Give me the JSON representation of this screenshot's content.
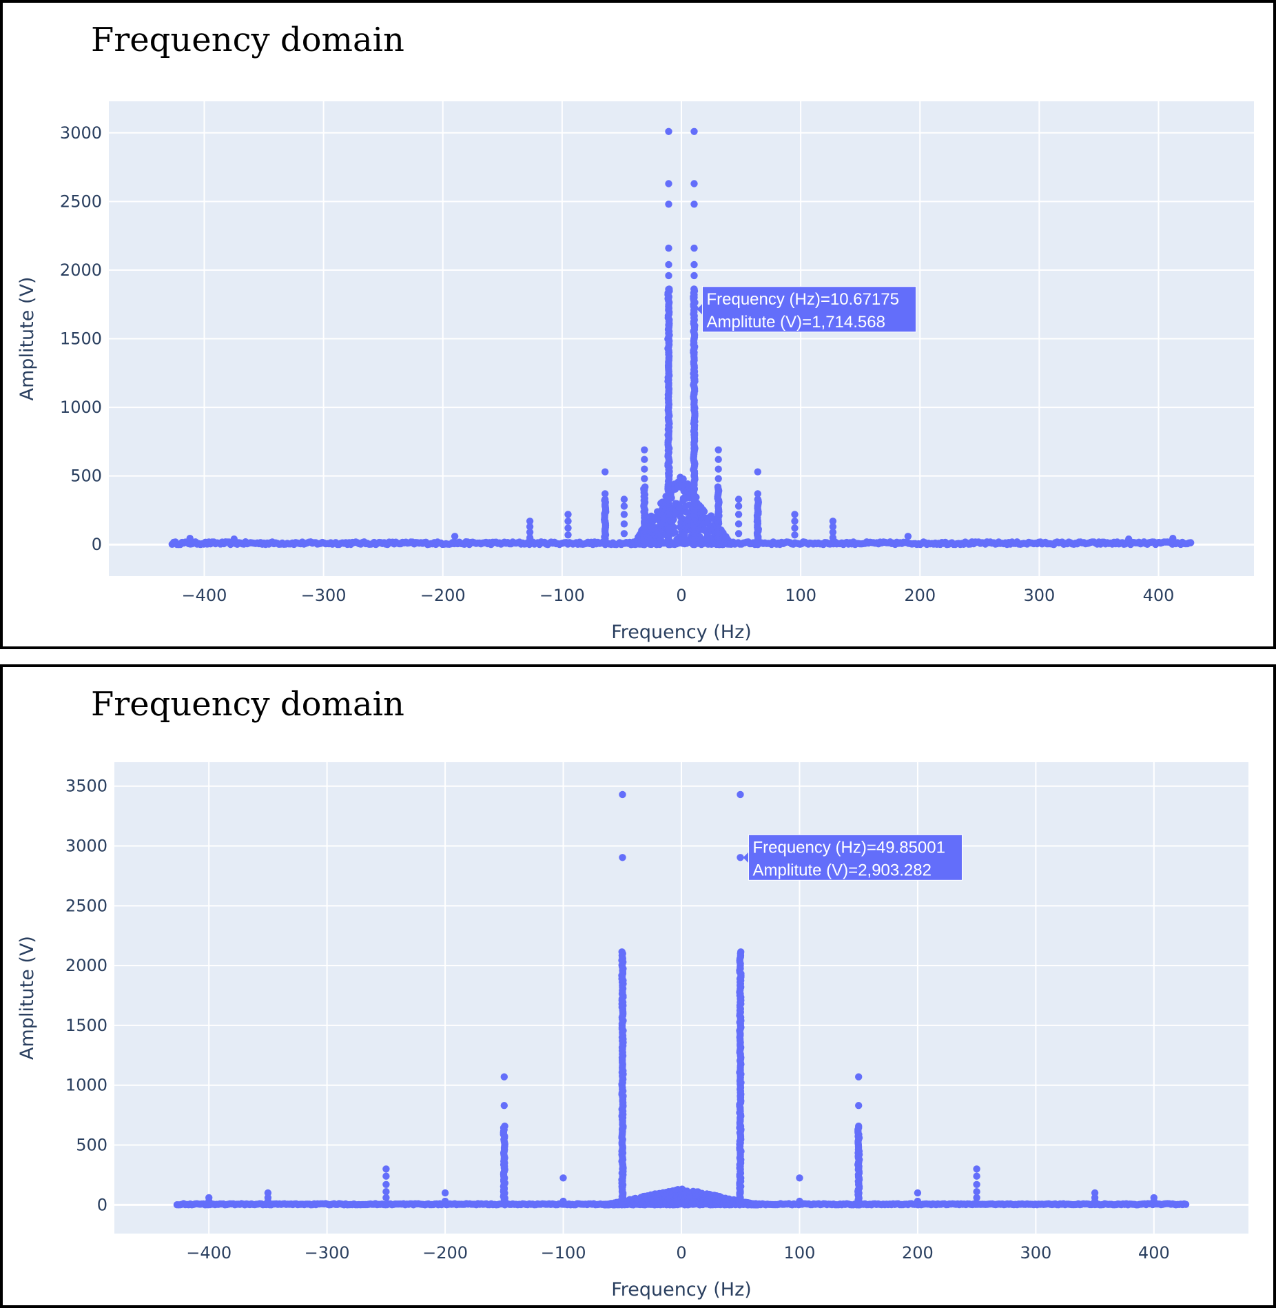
{
  "colors": {
    "marker": "#636efa",
    "plot_bg": "#e5ecf6",
    "grid": "#ffffff",
    "text": "#2a3f5f"
  },
  "chart_data": [
    {
      "type": "scatter",
      "title": "Frequency domain",
      "xlabel": "Frequency (Hz)",
      "ylabel": "Amplitute (V)",
      "xlim": [
        -480,
        480
      ],
      "ylim": [
        -230,
        3230
      ],
      "xticks": [
        -400,
        -300,
        -200,
        -100,
        0,
        100,
        200,
        300,
        400
      ],
      "xtick_labels": [
        "−400",
        "−300",
        "−200",
        "−100",
        "0",
        "100",
        "200",
        "300",
        "400"
      ],
      "yticks": [
        0,
        500,
        1000,
        1500,
        2000,
        2500,
        3000
      ],
      "ytick_labels": [
        "0",
        "500",
        "1000",
        "1500",
        "2000",
        "2500",
        "3000"
      ],
      "grid": true,
      "legend": "none",
      "x_range": [
        -427,
        427
      ],
      "noise_floor": 20,
      "peaks": [
        {
          "x": -10.7,
          "values": [
            3010,
            2630,
            2480,
            2160,
            2040,
            1960,
            1860,
            1800,
            1714.568,
            1600,
            1500,
            1400,
            1300,
            1200,
            1100,
            1000,
            900,
            800,
            700,
            600,
            500,
            400,
            300,
            200,
            100
          ]
        },
        {
          "x": 10.67175,
          "values": [
            3010,
            2630,
            2480,
            2160,
            2040,
            1960,
            1860,
            1800,
            1714.568,
            1600,
            1500,
            1400,
            1300,
            1200,
            1100,
            1000,
            900,
            800,
            700,
            600,
            500,
            400,
            300,
            200,
            100
          ]
        },
        {
          "x": -31,
          "values": [
            690,
            620,
            550,
            480,
            400,
            320,
            240,
            160,
            80
          ]
        },
        {
          "x": 31,
          "values": [
            690,
            620,
            550,
            480,
            400,
            320,
            240,
            160,
            80
          ]
        },
        {
          "x": -64,
          "values": [
            530,
            370,
            330,
            280,
            230,
            170,
            110,
            60
          ]
        },
        {
          "x": 64,
          "values": [
            530,
            370,
            330,
            280,
            230,
            170,
            110,
            60
          ]
        },
        {
          "x": -48,
          "values": [
            330,
            280,
            220,
            150,
            80
          ]
        },
        {
          "x": 48,
          "values": [
            330,
            280,
            220,
            150,
            80
          ]
        },
        {
          "x": -95,
          "values": [
            220,
            170,
            120,
            70
          ]
        },
        {
          "x": 95,
          "values": [
            220,
            170,
            120,
            70
          ]
        },
        {
          "x": -127,
          "values": [
            170,
            130,
            90,
            50
          ]
        },
        {
          "x": 127,
          "values": [
            170,
            130,
            90,
            50
          ]
        },
        {
          "x": -190,
          "values": [
            60
          ]
        },
        {
          "x": 190,
          "values": [
            60
          ]
        },
        {
          "x": -412,
          "values": [
            45
          ]
        },
        {
          "x": 412,
          "values": [
            45
          ]
        },
        {
          "x": -375,
          "values": [
            40
          ]
        },
        {
          "x": 375,
          "values": [
            40
          ]
        }
      ],
      "hump": {
        "center": 0,
        "half_width": 42,
        "max": 520
      },
      "hover": {
        "x": 10.67175,
        "y": 1714.568,
        "lines": [
          "Frequency (Hz)=10.67175",
          "Amplitute (V)=1,714.568"
        ]
      }
    },
    {
      "type": "scatter",
      "title": "Frequency domain",
      "xlabel": "Frequency (Hz)",
      "ylabel": "Amplitute (V)",
      "xlim": [
        -480,
        480
      ],
      "ylim": [
        -240,
        3700
      ],
      "xticks": [
        -400,
        -300,
        -200,
        -100,
        0,
        100,
        200,
        300,
        400
      ],
      "xtick_labels": [
        "−400",
        "−300",
        "−200",
        "−100",
        "0",
        "100",
        "200",
        "300",
        "400"
      ],
      "yticks": [
        0,
        500,
        1000,
        1500,
        2000,
        2500,
        3000,
        3500
      ],
      "ytick_labels": [
        "0",
        "500",
        "1000",
        "1500",
        "2000",
        "2500",
        "3000",
        "3500"
      ],
      "grid": true,
      "legend": "none",
      "x_range": [
        -427,
        427
      ],
      "noise_floor": 10,
      "peaks": [
        {
          "x": -49.85,
          "values": [
            3430,
            2903.282,
            1120,
            1020,
            910,
            640,
            460,
            380,
            340,
            300,
            260,
            200,
            150,
            100,
            60
          ]
        },
        {
          "x": 49.85001,
          "values": [
            3430,
            2903.282,
            1120,
            1020,
            910,
            640,
            460,
            380,
            340,
            300,
            260,
            200,
            150,
            100,
            60
          ]
        },
        {
          "x": -150,
          "values": [
            1070,
            830,
            390,
            350,
            310,
            230,
            170,
            130,
            90,
            50
          ]
        },
        {
          "x": 150,
          "values": [
            1070,
            830,
            390,
            350,
            310,
            230,
            170,
            130,
            90,
            50
          ]
        },
        {
          "x": -250,
          "values": [
            300,
            240,
            170,
            110,
            60
          ]
        },
        {
          "x": 250,
          "values": [
            300,
            240,
            170,
            110,
            60
          ]
        },
        {
          "x": -100,
          "values": [
            225,
            30
          ]
        },
        {
          "x": 100,
          "values": [
            225,
            30
          ]
        },
        {
          "x": -200,
          "values": [
            100,
            30
          ]
        },
        {
          "x": 200,
          "values": [
            100,
            30
          ]
        },
        {
          "x": -350,
          "values": [
            100,
            60,
            30
          ]
        },
        {
          "x": 350,
          "values": [
            100,
            60,
            30
          ]
        },
        {
          "x": -400,
          "values": [
            60,
            30
          ]
        },
        {
          "x": 400,
          "values": [
            60,
            30
          ]
        }
      ],
      "hump": {
        "center": 0,
        "half_width": 65,
        "max": 140
      },
      "hover": {
        "x": 49.85001,
        "y": 2903.282,
        "lines": [
          "Frequency (Hz)=49.85001",
          "Amplitute (V)=2,903.282"
        ]
      }
    }
  ]
}
